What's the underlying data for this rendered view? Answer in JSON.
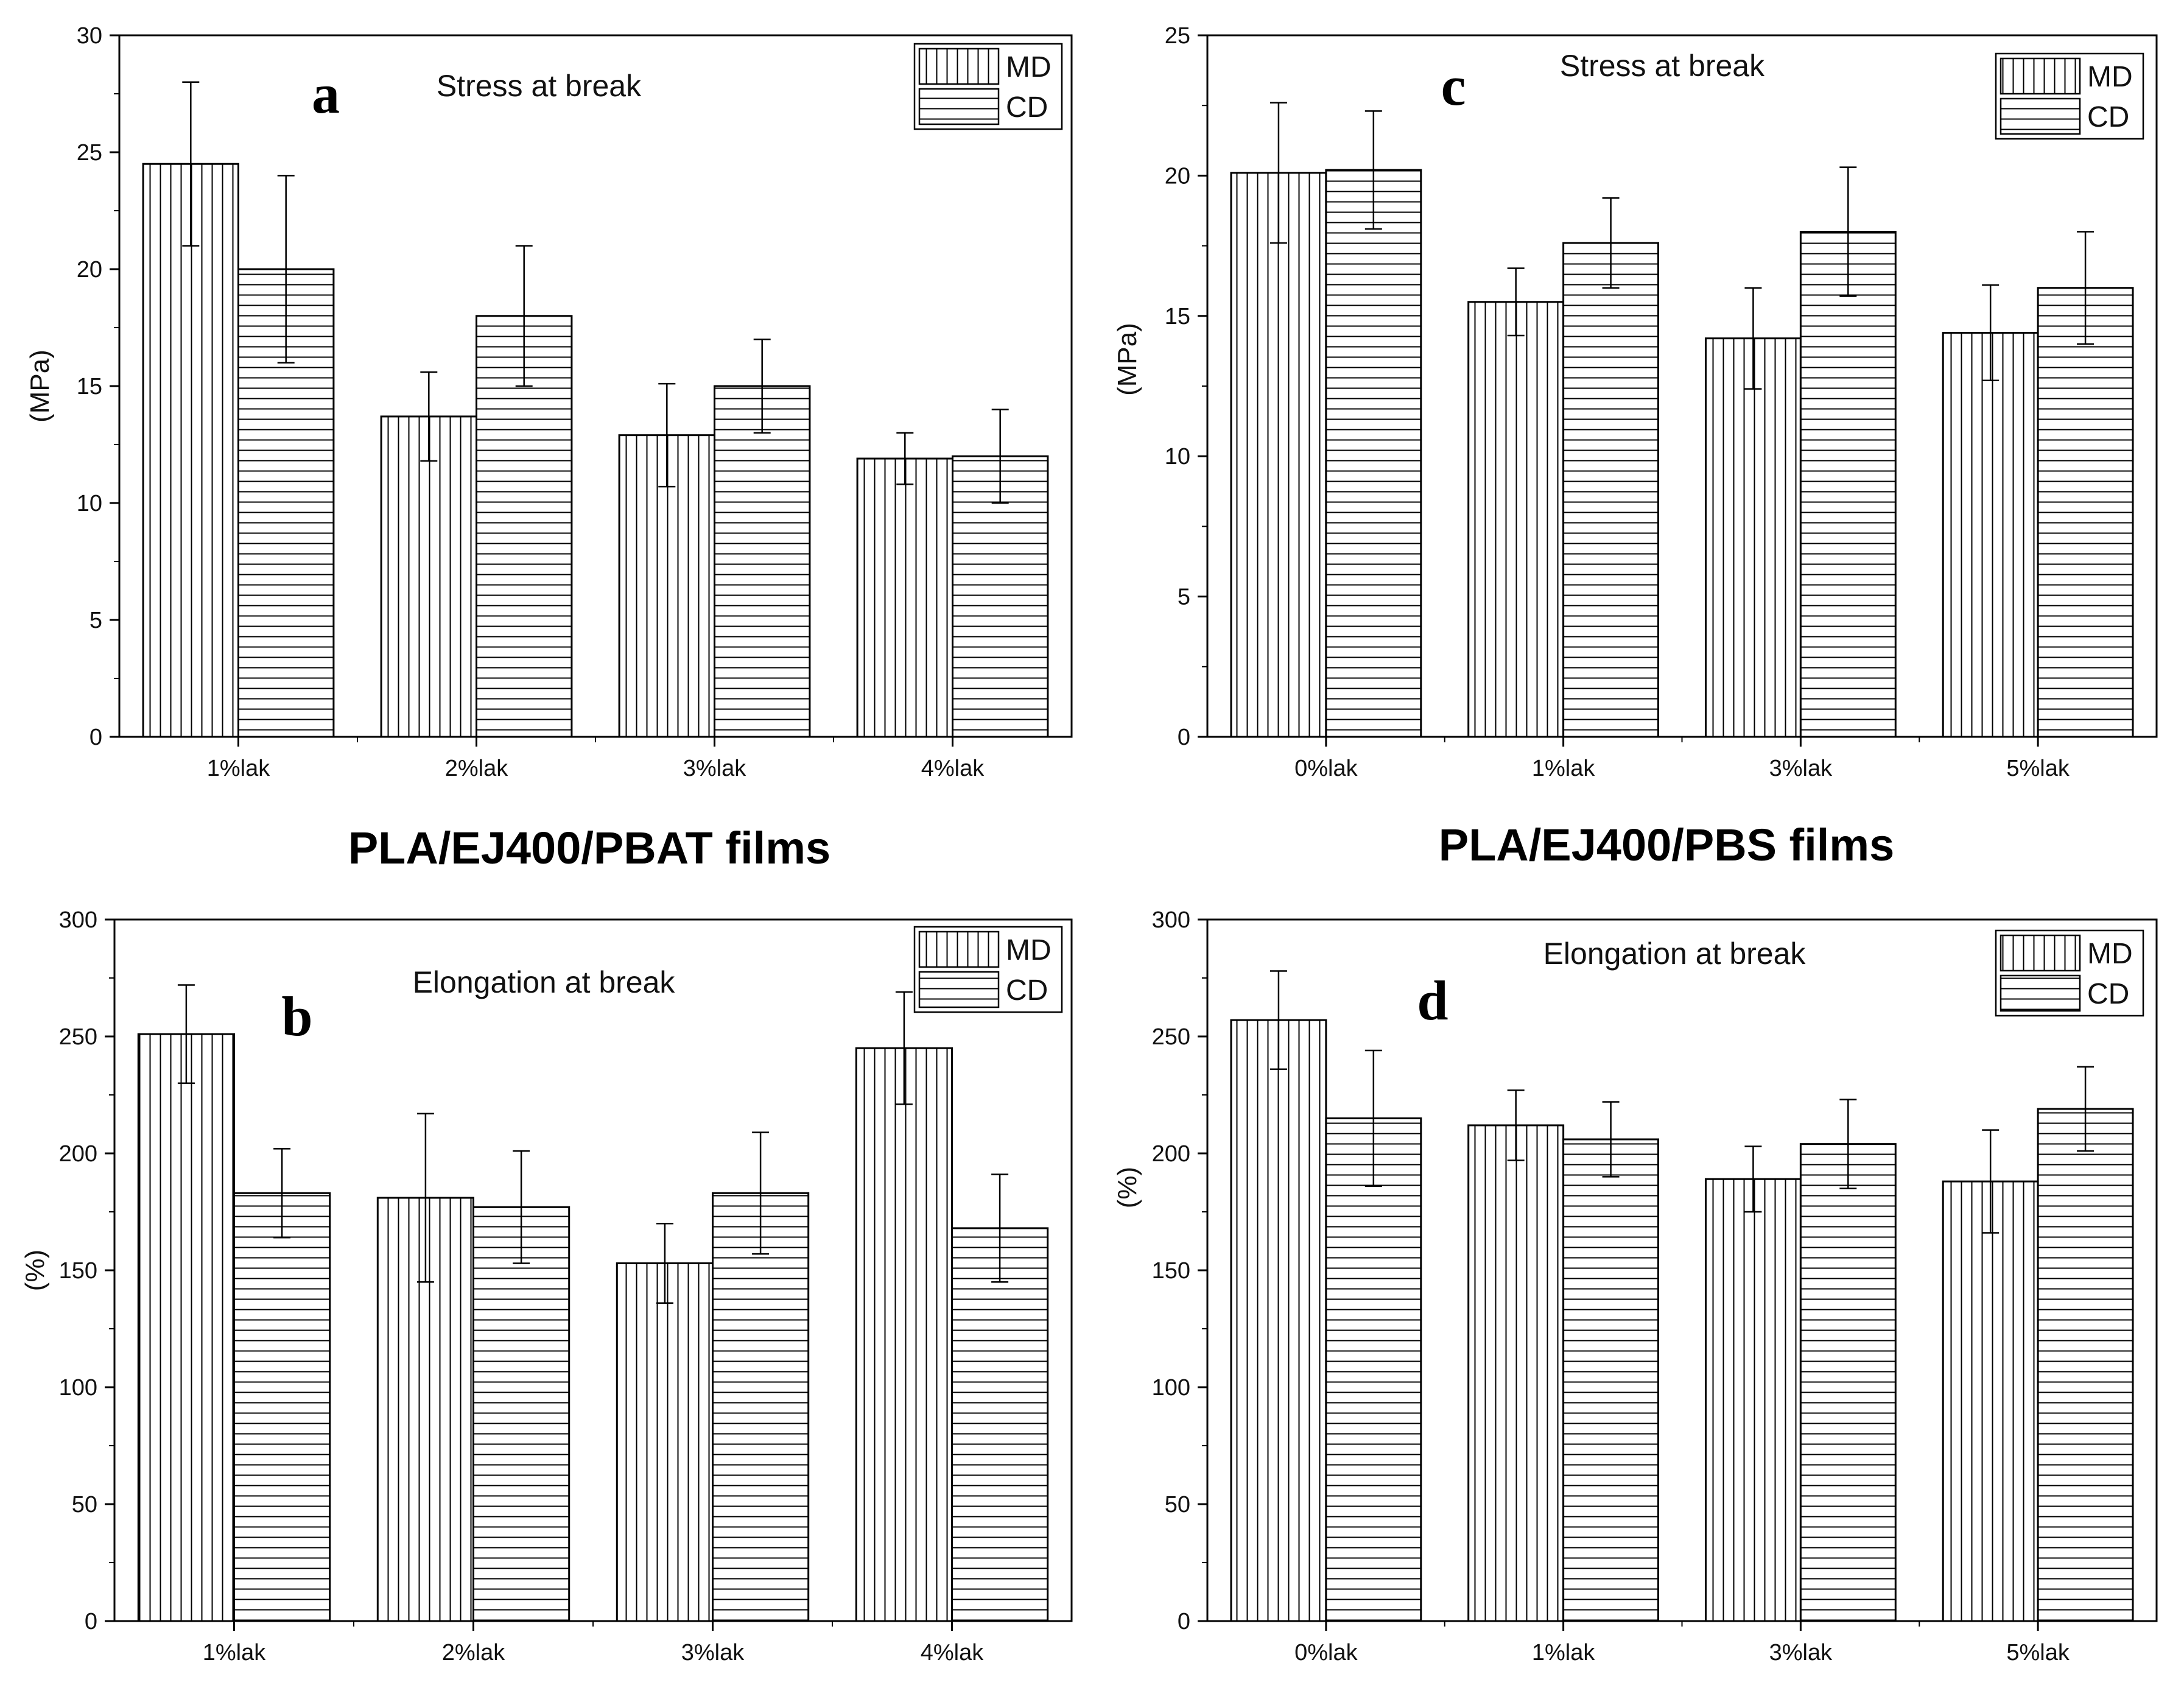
{
  "group_titles": [
    "PLA/EJ400/PBAT films",
    "PLA/EJ400/PBS films"
  ],
  "chart_data": [
    {
      "panel": "a",
      "type": "bar",
      "title": "Stress at break",
      "ylabel": "(MPa)",
      "xlabel": "",
      "ylim": [
        0,
        30
      ],
      "yticks": [
        0,
        5,
        10,
        15,
        20,
        25,
        30
      ],
      "categories": [
        "1%lak",
        "2%lak",
        "3%lak",
        "4%lak"
      ],
      "series": [
        {
          "name": "MD",
          "pattern": "vertical",
          "values": [
            24.5,
            13.7,
            12.9,
            11.9
          ],
          "errors": [
            3.5,
            1.9,
            2.2,
            1.1
          ]
        },
        {
          "name": "CD",
          "pattern": "horizontal",
          "values": [
            20.0,
            18.0,
            15.0,
            12.0
          ],
          "errors": [
            4.0,
            3.0,
            2.0,
            2.0
          ]
        }
      ],
      "legend": "top-right"
    },
    {
      "panel": "b",
      "type": "bar",
      "title": "Elongation at break",
      "ylabel": "(%)",
      "xlabel": "",
      "ylim": [
        0,
        300
      ],
      "yticks": [
        0,
        50,
        100,
        150,
        200,
        250,
        300
      ],
      "categories": [
        "1%lak",
        "2%lak",
        "3%lak",
        "4%lak"
      ],
      "series": [
        {
          "name": "MD",
          "pattern": "vertical",
          "values": [
            251,
            181,
            153,
            245
          ],
          "errors": [
            21,
            36,
            17,
            24
          ]
        },
        {
          "name": "CD",
          "pattern": "horizontal",
          "values": [
            183,
            177,
            183,
            168
          ],
          "errors": [
            19,
            24,
            26,
            23
          ]
        }
      ],
      "legend": "top-right"
    },
    {
      "panel": "c",
      "type": "bar",
      "title": "Stress at break",
      "ylabel": "(MPa)",
      "xlabel": "",
      "ylim": [
        0,
        25
      ],
      "yticks": [
        0,
        5,
        10,
        15,
        20,
        25
      ],
      "categories": [
        "0%lak",
        "1%lak",
        "3%lak",
        "5%lak"
      ],
      "series": [
        {
          "name": "MD",
          "pattern": "vertical",
          "values": [
            20.1,
            15.5,
            14.2,
            14.4
          ],
          "errors": [
            2.5,
            1.2,
            1.8,
            1.7
          ]
        },
        {
          "name": "CD",
          "pattern": "horizontal",
          "values": [
            20.2,
            17.6,
            18.0,
            16.0
          ],
          "errors": [
            2.1,
            1.6,
            2.3,
            2.0
          ]
        }
      ],
      "legend": "top-right"
    },
    {
      "panel": "d",
      "type": "bar",
      "title": "Elongation at break",
      "ylabel": "(%)",
      "xlabel": "",
      "ylim": [
        0,
        300
      ],
      "yticks": [
        0,
        50,
        100,
        150,
        200,
        250,
        300
      ],
      "categories": [
        "0%lak",
        "1%lak",
        "3%lak",
        "5%lak"
      ],
      "series": [
        {
          "name": "MD",
          "pattern": "vertical",
          "values": [
            257,
            212,
            189,
            188
          ],
          "errors": [
            21,
            15,
            14,
            22
          ]
        },
        {
          "name": "CD",
          "pattern": "horizontal",
          "values": [
            215,
            206,
            204,
            219
          ],
          "errors": [
            29,
            16,
            19,
            18
          ]
        }
      ],
      "legend": "top-right"
    }
  ]
}
